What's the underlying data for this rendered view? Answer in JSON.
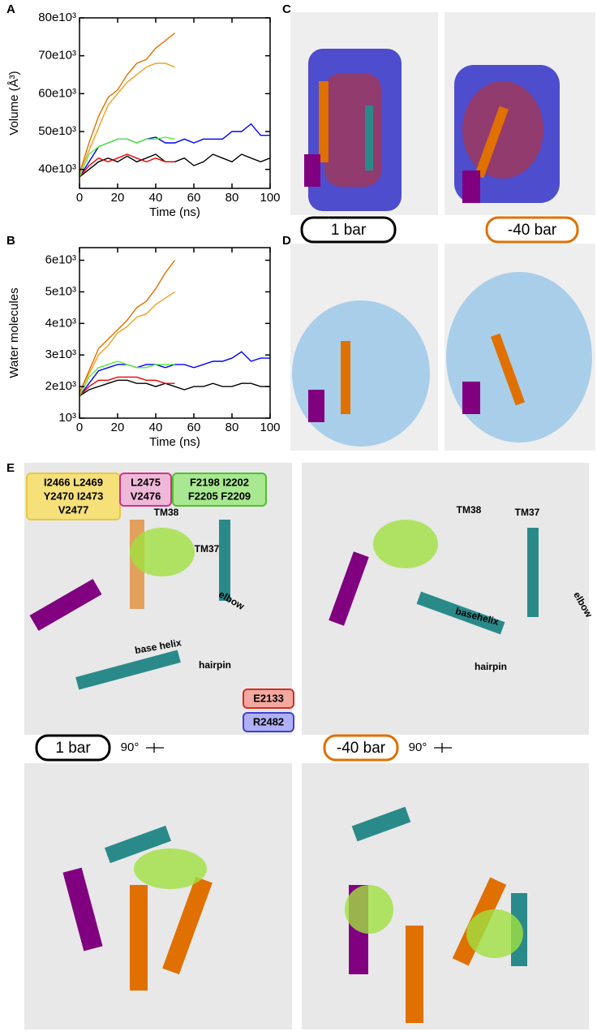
{
  "chart_data": [
    {
      "type": "line",
      "panel": "A",
      "y_label": "Volume (Å³)",
      "x_label": "Time (ns)",
      "x": [
        0,
        5,
        10,
        15,
        20,
        25,
        30,
        35,
        40,
        45,
        50,
        55,
        60,
        65,
        70,
        75,
        80,
        85,
        90,
        95,
        100
      ],
      "xlim": [
        0,
        100
      ],
      "xticks": [
        0,
        20,
        40,
        60,
        80,
        100
      ],
      "ylim": [
        35000,
        80000
      ],
      "yticks": [
        {
          "value": 40000,
          "label": "40e10³"
        },
        {
          "value": 50000,
          "label": "50e10³"
        },
        {
          "value": 60000,
          "label": "60e10³"
        },
        {
          "value": 70000,
          "label": "70e10³"
        },
        {
          "value": 80000,
          "label": "80e10³"
        }
      ],
      "series": [
        {
          "color": "#000000",
          "values": [
            38000,
            40000,
            42000,
            43000,
            42000,
            43500,
            42000,
            43000,
            44000,
            42000,
            42000,
            43000,
            41000,
            42000,
            44000,
            43000,
            42000,
            44000,
            43000,
            42000,
            43000
          ]
        },
        {
          "color": "#0000ff",
          "values": [
            38000,
            42000,
            46000,
            47000,
            48000,
            48000,
            47000,
            48000,
            48500,
            47000,
            47000,
            48000,
            47000,
            48000,
            48000,
            48000,
            50000,
            50000,
            52000,
            49000,
            49000
          ]
        },
        {
          "color": "#ee0000",
          "values": [
            38000,
            41000,
            43000,
            42000,
            43000,
            44000,
            43000,
            42000,
            43000,
            42000,
            42000,
            null,
            null,
            null,
            null,
            null,
            null,
            null,
            null,
            null,
            null
          ]
        },
        {
          "color": "#55ee33",
          "values": [
            38000,
            44000,
            46000,
            47000,
            48000,
            48000,
            47000,
            48000,
            48000,
            48500,
            48000,
            null,
            null,
            null,
            null,
            null,
            null,
            null,
            null,
            null,
            null
          ]
        },
        {
          "color": "#f0a020",
          "values": [
            39000,
            45000,
            51000,
            57000,
            60000,
            63000,
            65000,
            67000,
            68000,
            68000,
            67000,
            null,
            null,
            null,
            null,
            null,
            null,
            null,
            null,
            null,
            null
          ]
        },
        {
          "color": "#e07000",
          "values": [
            39000,
            47000,
            54000,
            59000,
            61000,
            65000,
            68000,
            69000,
            72000,
            74000,
            76000,
            null,
            null,
            null,
            null,
            null,
            null,
            null,
            null,
            null,
            null
          ]
        }
      ]
    },
    {
      "type": "line",
      "panel": "B",
      "y_label": "Water molecules",
      "x_label": "Time (ns)",
      "x": [
        0,
        5,
        10,
        15,
        20,
        25,
        30,
        35,
        40,
        45,
        50,
        55,
        60,
        65,
        70,
        75,
        80,
        85,
        90,
        95,
        100
      ],
      "xlim": [
        0,
        100
      ],
      "xticks": [
        0,
        20,
        40,
        60,
        80,
        100
      ],
      "ylim": [
        1000,
        6400
      ],
      "yticks": [
        {
          "value": 1000,
          "label": "10³"
        },
        {
          "value": 2000,
          "label": "2e10³"
        },
        {
          "value": 3000,
          "label": "3e10³"
        },
        {
          "value": 4000,
          "label": "4e10³"
        },
        {
          "value": 5000,
          "label": "5e10³"
        },
        {
          "value": 6000,
          "label": "6e10³"
        }
      ],
      "series": [
        {
          "color": "#000000",
          "values": [
            1700,
            1900,
            2000,
            2100,
            2200,
            2200,
            2100,
            2100,
            2000,
            2100,
            2000,
            1900,
            2000,
            2000,
            2100,
            2000,
            2000,
            2100,
            2100,
            2000,
            2000
          ]
        },
        {
          "color": "#0000ff",
          "values": [
            1700,
            2100,
            2500,
            2600,
            2700,
            2700,
            2600,
            2700,
            2700,
            2600,
            2700,
            2700,
            2600,
            2700,
            2800,
            2800,
            2900,
            3100,
            2800,
            2900,
            2900
          ]
        },
        {
          "color": "#ee0000",
          "values": [
            1700,
            2000,
            2200,
            2200,
            2300,
            2300,
            2300,
            2200,
            2200,
            2100,
            2100,
            null,
            null,
            null,
            null,
            null,
            null,
            null,
            null,
            null,
            null
          ]
        },
        {
          "color": "#55ee33",
          "values": [
            1700,
            2300,
            2600,
            2700,
            2800,
            2700,
            2600,
            2600,
            2700,
            2700,
            2700,
            null,
            null,
            null,
            null,
            null,
            null,
            null,
            null,
            null,
            null
          ]
        },
        {
          "color": "#f0a020",
          "values": [
            1800,
            2400,
            3000,
            3300,
            3700,
            3900,
            4200,
            4300,
            4600,
            4800,
            5000,
            null,
            null,
            null,
            null,
            null,
            null,
            null,
            null,
            null,
            null
          ]
        },
        {
          "color": "#e07000",
          "values": [
            1800,
            2500,
            3200,
            3500,
            3800,
            4100,
            4500,
            4700,
            5100,
            5600,
            6000,
            null,
            null,
            null,
            null,
            null,
            null,
            null,
            null,
            null,
            null
          ]
        }
      ]
    }
  ],
  "figure": {
    "panel_labels": [
      "C",
      "D",
      "E"
    ],
    "pressures": [
      {
        "label": "1 bar",
        "color": "#000000"
      },
      {
        "label": "-40 bar",
        "color": "#e07000"
      }
    ],
    "rotation": "90°",
    "residue_groups": [
      {
        "lines": [
          "I2466  L2469",
          "Y2470  I2473",
          "V2477"
        ],
        "color": "#f5e07a",
        "border": "#e8c840"
      },
      {
        "lines": [
          "L2475",
          "V2476"
        ],
        "color": "#f0b8d8",
        "border": "#d0308a"
      },
      {
        "lines": [
          "F2198  I2202",
          "F2205  F2209"
        ],
        "color": "#a8e890",
        "border": "#50c030"
      },
      {
        "lines": [
          "E2133"
        ],
        "color": "#f4a8a0",
        "border": "#d03020"
      },
      {
        "lines": [
          "R2482"
        ],
        "color": "#b0b0f8",
        "border": "#4040d0"
      }
    ],
    "annotations_left": [
      "TM38",
      "TM37",
      "elbow",
      "base helix",
      "hairpin"
    ],
    "annotations_right": [
      "TM38",
      "TM37",
      "elbow",
      "basehelix",
      "hairpin"
    ]
  }
}
